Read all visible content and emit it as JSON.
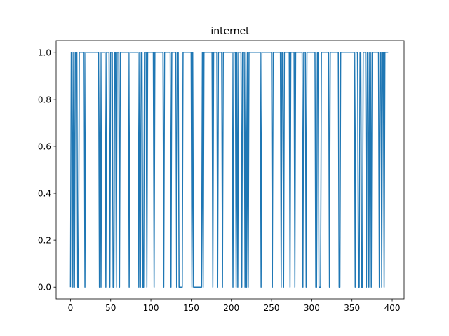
{
  "chart_data": {
    "type": "line",
    "title": "internet",
    "xlabel": "",
    "ylabel": "",
    "xlim": [
      -17.8,
      414.8
    ],
    "ylim": [
      -0.05,
      1.05
    ],
    "xticks": [
      0,
      50,
      100,
      150,
      200,
      250,
      300,
      350,
      400
    ],
    "yticks": [
      0.0,
      0.2,
      0.4,
      0.6,
      0.8,
      1.0
    ],
    "xtick_labels": [
      "0",
      "50",
      "100",
      "150",
      "200",
      "250",
      "300",
      "350",
      "400"
    ],
    "ytick_labels": [
      "0.0",
      "0.2",
      "0.4",
      "0.6",
      "0.8",
      "1.0"
    ],
    "grid": false,
    "color": "#1f77b4",
    "n_points": 396,
    "zero_indices": [
      0,
      3,
      5,
      9,
      10,
      18,
      36,
      38,
      44,
      49,
      53,
      54,
      57,
      61,
      73,
      85,
      87,
      90,
      91,
      95,
      104,
      116,
      125,
      132,
      135,
      136,
      137,
      138,
      139,
      151,
      153,
      154,
      155,
      156,
      157,
      158,
      159,
      160,
      161,
      162,
      163,
      165,
      177,
      183,
      189,
      202,
      206,
      208,
      213,
      217,
      219,
      221,
      237,
      251,
      262,
      265,
      273,
      279,
      289,
      293,
      305,
      306,
      309,
      310,
      311,
      322,
      334,
      335,
      354,
      358,
      359,
      362,
      363,
      368,
      371,
      374,
      384,
      387,
      390
    ]
  }
}
